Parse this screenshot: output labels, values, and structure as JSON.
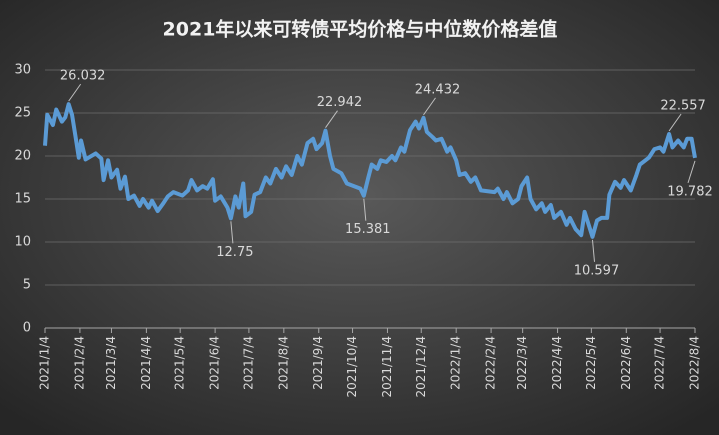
{
  "chart_data": {
    "type": "line",
    "title": "2021年以来可转债平均价格与中位数价格差值",
    "x": [
      "2021/1/4",
      "2021/1/6",
      "2021/1/11",
      "2021/1/14",
      "2021/1/19",
      "2021/1/22",
      "2021/1/25",
      "2021/1/28",
      "2021/2/1",
      "2021/2/3",
      "2021/2/5",
      "2021/2/9",
      "2021/2/18",
      "2021/2/23",
      "2021/2/25",
      "2021/3/1",
      "2021/3/4",
      "2021/3/9",
      "2021/3/12",
      "2021/3/16",
      "2021/3/19",
      "2021/3/24",
      "2021/3/29",
      "2021/4/1",
      "2021/4/6",
      "2021/4/9",
      "2021/4/14",
      "2021/4/19",
      "2021/4/23",
      "2021/4/28",
      "2021/5/6",
      "2021/5/11",
      "2021/5/14",
      "2021/5/19",
      "2021/5/24",
      "2021/5/28",
      "2021/6/2",
      "2021/6/4",
      "2021/6/9",
      "2021/6/15",
      "2021/6/18",
      "2021/6/22",
      "2021/6/25",
      "2021/6/29",
      "2021/7/1",
      "2021/7/6",
      "2021/7/9",
      "2021/7/14",
      "2021/7/19",
      "2021/7/23",
      "2021/7/28",
      "2021/8/2",
      "2021/8/6",
      "2021/8/11",
      "2021/8/16",
      "2021/8/20",
      "2021/8/25",
      "2021/8/30",
      "2021/9/2",
      "2021/9/7",
      "2021/9/10",
      "2021/9/14",
      "2021/9/17",
      "2021/9/24",
      "2021/9/29",
      "2021/10/11",
      "2021/10/14",
      "2021/10/18",
      "2021/10/21",
      "2021/10/26",
      "2021/10/29",
      "2021/11/3",
      "2021/11/8",
      "2021/11/11",
      "2021/11/16",
      "2021/11/19",
      "2021/11/24",
      "2021/11/29",
      "2021/12/2",
      "2021/12/6",
      "2021/12/9",
      "2021/12/14",
      "2021/12/17",
      "2021/12/22",
      "2021/12/27",
      "2021/12/30",
      "2022/1/4",
      "2022/1/7",
      "2022/1/12",
      "2022/1/17",
      "2022/1/21",
      "2022/1/26",
      "2022/2/7",
      "2022/2/10",
      "2022/2/15",
      "2022/2/18",
      "2022/2/23",
      "2022/2/28",
      "2022/3/3",
      "2022/3/8",
      "2022/3/11",
      "2022/3/16",
      "2022/3/21",
      "2022/3/24",
      "2022/3/29",
      "2022/4/1",
      "2022/4/7",
      "2022/4/12",
      "2022/4/15",
      "2022/4/20",
      "2022/4/25",
      "2022/4/28",
      "2022/5/5",
      "2022/5/9",
      "2022/5/13",
      "2022/5/18",
      "2022/5/20",
      "2022/5/25",
      "2022/5/30",
      "2022/6/2",
      "2022/6/8",
      "2022/6/13",
      "2022/6/16",
      "2022/6/21",
      "2022/6/24",
      "2022/6/29",
      "2022/7/4",
      "2022/7/7",
      "2022/7/12",
      "2022/7/15",
      "2022/7/20",
      "2022/7/25",
      "2022/7/28",
      "2022/8/1",
      "2022/8/3",
      "2022/8/4"
    ],
    "values": [
      21.2,
      24.8,
      23.6,
      25.4,
      24.0,
      24.5,
      26.032,
      24.8,
      21.5,
      19.8,
      21.8,
      19.6,
      20.3,
      19.7,
      17.2,
      19.5,
      17.5,
      18.4,
      16.2,
      17.6,
      15.0,
      15.4,
      14.2,
      15.0,
      14.0,
      14.8,
      13.6,
      14.5,
      15.3,
      15.8,
      15.4,
      16.0,
      17.2,
      16.0,
      16.5,
      16.2,
      17.3,
      14.8,
      15.3,
      14.0,
      12.75,
      15.3,
      14.0,
      16.8,
      13.0,
      13.5,
      15.5,
      15.8,
      17.5,
      16.8,
      18.5,
      17.5,
      18.8,
      17.8,
      20.0,
      19.0,
      21.5,
      22.0,
      20.8,
      21.5,
      22.942,
      20.0,
      18.5,
      18.0,
      16.8,
      16.2,
      15.381,
      17.5,
      19.0,
      18.5,
      19.5,
      19.3,
      20.0,
      19.5,
      21.0,
      20.5,
      23.0,
      24.0,
      23.2,
      24.432,
      22.8,
      22.2,
      21.8,
      22.0,
      20.5,
      21.0,
      19.5,
      17.8,
      18.0,
      17.0,
      17.5,
      16.0,
      15.8,
      16.2,
      15.0,
      15.8,
      14.5,
      15.0,
      16.5,
      17.5,
      15.0,
      13.8,
      14.5,
      13.5,
      14.3,
      12.8,
      13.5,
      12.0,
      12.8,
      11.5,
      10.8,
      13.5,
      10.597,
      12.5,
      12.8,
      12.8,
      15.5,
      17.0,
      16.3,
      17.2,
      16.0,
      17.8,
      19.0,
      19.5,
      19.8,
      20.8,
      21.0,
      20.5,
      22.557,
      21.0,
      21.8,
      21.0,
      22.0,
      22.0,
      20.5,
      19.782
    ],
    "value_labels": [
      null,
      null,
      null,
      null,
      null,
      null,
      "26.032",
      null,
      null,
      null,
      null,
      null,
      null,
      null,
      null,
      null,
      null,
      null,
      null,
      null,
      null,
      null,
      null,
      null,
      null,
      null,
      null,
      null,
      null,
      null,
      null,
      null,
      null,
      null,
      null,
      null,
      null,
      null,
      null,
      null,
      "12.75",
      null,
      null,
      null,
      null,
      null,
      null,
      null,
      null,
      null,
      null,
      null,
      null,
      null,
      null,
      null,
      null,
      null,
      null,
      null,
      "22.942",
      null,
      null,
      null,
      null,
      null,
      "15.381",
      null,
      null,
      null,
      null,
      null,
      null,
      null,
      null,
      null,
      null,
      null,
      null,
      "24.432",
      null,
      null,
      null,
      null,
      null,
      null,
      null,
      null,
      null,
      null,
      null,
      null,
      null,
      null,
      null,
      null,
      null,
      null,
      null,
      null,
      null,
      null,
      null,
      null,
      null,
      null,
      null,
      null,
      null,
      null,
      null,
      null,
      "10.597",
      null,
      null,
      null,
      null,
      null,
      null,
      null,
      null,
      null,
      null,
      null,
      null,
      null,
      null,
      null,
      "22.557",
      null,
      null,
      null,
      null,
      null,
      null,
      "19.782"
    ],
    "color": "#5b9bd5",
    "xlim": [
      "2021/1/4",
      "2022/8/4"
    ],
    "xticks": [
      "2021/1/4",
      "2021/2/4",
      "2021/3/4",
      "2021/4/4",
      "2021/5/4",
      "2021/6/4",
      "2021/7/4",
      "2021/8/4",
      "2021/9/4",
      "2021/10/4",
      "2021/11/4",
      "2021/12/4",
      "2022/1/4",
      "2022/2/4",
      "2022/3/4",
      "2022/4/4",
      "2022/5/4",
      "2022/6/4",
      "2022/7/4",
      "2022/8/4"
    ],
    "ylim": [
      0,
      30
    ],
    "yticks": [
      0,
      5,
      10,
      15,
      20,
      25,
      30
    ],
    "grid": true
  }
}
